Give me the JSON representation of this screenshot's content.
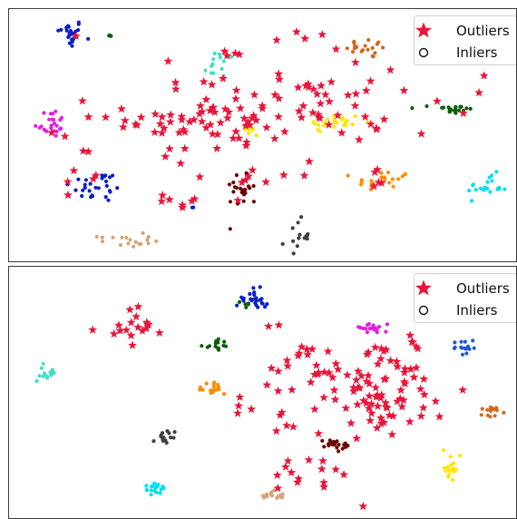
{
  "chart_data": [
    {
      "type": "scatter",
      "title": "",
      "xlabel": "",
      "ylabel": "",
      "xlim": [
        0,
        100
      ],
      "ylim": [
        0,
        100
      ],
      "grid": false,
      "legend": {
        "placement": "top-right",
        "entries": [
          {
            "label": "Outliers",
            "marker": "star",
            "color": "#e8163a"
          },
          {
            "label": "Inliers",
            "marker": "circle-open",
            "color": "#111111"
          }
        ]
      },
      "clusters": [
        {
          "color": "#0a1fc9",
          "cx": 11.5,
          "cy": 91.5,
          "sx": 1.3,
          "sy": 3.0,
          "n": 24
        },
        {
          "color": "#0b5e0b",
          "cx": 19.5,
          "cy": 91.0,
          "sx": 0.6,
          "sy": 1.0,
          "n": 3
        },
        {
          "color": "#40e0c0",
          "cx": 41.5,
          "cy": 79.0,
          "sx": 2.0,
          "sy": 3.0,
          "n": 15
        },
        {
          "color": "#d2691e",
          "cx": 71.5,
          "cy": 85.5,
          "sx": 2.4,
          "sy": 2.0,
          "n": 20
        },
        {
          "color": "#e020e0",
          "cx": 7.5,
          "cy": 55.0,
          "sx": 1.6,
          "sy": 3.0,
          "n": 24
        },
        {
          "color": "#0b5e0b",
          "cx": 88.0,
          "cy": 60.5,
          "sx": 2.0,
          "sy": 1.2,
          "n": 22
        },
        {
          "color": "#ffe600",
          "cx": 64.5,
          "cy": 55.0,
          "sx": 2.8,
          "sy": 2.0,
          "n": 24
        },
        {
          "color": "#ffe600",
          "cx": 48.0,
          "cy": 52.0,
          "sx": 1.5,
          "sy": 1.5,
          "n": 6
        },
        {
          "color": "#0a1fc9",
          "cx": 17.0,
          "cy": 29.0,
          "sx": 2.8,
          "sy": 3.2,
          "n": 28
        },
        {
          "color": "#6b0000",
          "cx": 46.0,
          "cy": 28.5,
          "sx": 1.6,
          "sy": 4.0,
          "n": 22
        },
        {
          "color": "#ff8c00",
          "cx": 74.0,
          "cy": 31.0,
          "sx": 2.8,
          "sy": 2.5,
          "n": 22
        },
        {
          "color": "#00e0f0",
          "cx": 95.0,
          "cy": 29.0,
          "sx": 2.0,
          "sy": 2.5,
          "n": 20
        },
        {
          "color": "#404040",
          "cx": 57.0,
          "cy": 8.5,
          "sx": 1.2,
          "sy": 3.5,
          "n": 14
        },
        {
          "color": "#d2a679",
          "cx": 22.5,
          "cy": 7.0,
          "sx": 2.6,
          "sy": 1.3,
          "n": 18
        },
        {
          "color": "#0a1fc9",
          "cx": 36.0,
          "cy": 20.5,
          "sx": 0.6,
          "sy": 0.6,
          "n": 2
        }
      ],
      "outliers": {
        "color": "#e8163a",
        "regions": [
          {
            "cx": 40.0,
            "cy": 57.0,
            "sx": 8.5,
            "sy": 8.0,
            "n": 70
          },
          {
            "cx": 63.0,
            "cy": 62.0,
            "sx": 6.5,
            "sy": 7.5,
            "n": 38
          },
          {
            "cx": 50.0,
            "cy": 84.0,
            "sx": 10.0,
            "sy": 5.0,
            "n": 12
          },
          {
            "cx": 13.0,
            "cy": 55.0,
            "sx": 3.0,
            "sy": 14.0,
            "n": 8
          },
          {
            "cx": 72.0,
            "cy": 32.0,
            "sx": 2.0,
            "sy": 3.0,
            "n": 5
          },
          {
            "cx": 34.0,
            "cy": 22.0,
            "sx": 3.5,
            "sy": 1.5,
            "n": 6
          },
          {
            "cx": 16.0,
            "cy": 30.0,
            "sx": 5.0,
            "sy": 4.0,
            "n": 5
          },
          {
            "cx": 85.0,
            "cy": 60.0,
            "sx": 8.0,
            "sy": 8.0,
            "n": 5
          },
          {
            "cx": 50.0,
            "cy": 35.0,
            "sx": 6.0,
            "sy": 5.0,
            "n": 10
          }
        ]
      }
    },
    {
      "type": "scatter",
      "title": "",
      "xlabel": "",
      "ylabel": "",
      "xlim": [
        0,
        100
      ],
      "ylim": [
        0,
        100
      ],
      "grid": false,
      "legend": {
        "placement": "top-right",
        "entries": [
          {
            "label": "Outliers",
            "marker": "star",
            "color": "#e8163a"
          },
          {
            "label": "Inliers",
            "marker": "circle-open",
            "color": "#111111"
          }
        ]
      },
      "clusters": [
        {
          "color": "#0a1fc9",
          "cx": 48.5,
          "cy": 88.5,
          "sx": 1.8,
          "sy": 2.4,
          "n": 26
        },
        {
          "color": "#0b5e0b",
          "cx": 47.0,
          "cy": 86.0,
          "sx": 1.2,
          "sy": 0.8,
          "n": 5
        },
        {
          "color": "#e020e0",
          "cx": 71.0,
          "cy": 76.0,
          "sx": 1.8,
          "sy": 1.0,
          "n": 18
        },
        {
          "color": "#0b5e0b",
          "cx": 40.5,
          "cy": 69.5,
          "sx": 1.2,
          "sy": 1.0,
          "n": 14
        },
        {
          "color": "#1c5bd0",
          "cx": 90.5,
          "cy": 68.0,
          "sx": 1.4,
          "sy": 1.8,
          "n": 16
        },
        {
          "color": "#40e0c0",
          "cx": 6.5,
          "cy": 57.5,
          "sx": 1.5,
          "sy": 1.4,
          "n": 16
        },
        {
          "color": "#ff8c00",
          "cx": 40.5,
          "cy": 51.5,
          "sx": 1.3,
          "sy": 1.3,
          "n": 16
        },
        {
          "color": "#d2691e",
          "cx": 95.5,
          "cy": 42.5,
          "sx": 1.5,
          "sy": 1.2,
          "n": 14
        },
        {
          "color": "#6b0000",
          "cx": 64.5,
          "cy": 29.0,
          "sx": 1.7,
          "sy": 1.3,
          "n": 20
        },
        {
          "color": "#404040",
          "cx": 30.5,
          "cy": 31.0,
          "sx": 1.2,
          "sy": 1.6,
          "n": 14
        },
        {
          "color": "#ffe600",
          "cx": 87.5,
          "cy": 19.5,
          "sx": 1.0,
          "sy": 2.2,
          "n": 16
        },
        {
          "color": "#00e0f0",
          "cx": 28.5,
          "cy": 10.5,
          "sx": 1.4,
          "sy": 1.2,
          "n": 18
        },
        {
          "color": "#d2a679",
          "cx": 52.5,
          "cy": 7.5,
          "sx": 1.6,
          "sy": 1.0,
          "n": 16
        }
      ],
      "outliers": {
        "color": "#e8163a",
        "regions": [
          {
            "cx": 24.0,
            "cy": 78.0,
            "sx": 3.5,
            "sy": 3.5,
            "n": 18
          },
          {
            "cx": 72.0,
            "cy": 50.0,
            "sx": 7.0,
            "sy": 9.0,
            "n": 85
          },
          {
            "cx": 57.0,
            "cy": 63.0,
            "sx": 4.5,
            "sy": 8.0,
            "n": 20
          },
          {
            "cx": 58.0,
            "cy": 19.0,
            "sx": 5.0,
            "sy": 4.0,
            "n": 12
          },
          {
            "cx": 50.0,
            "cy": 40.0,
            "sx": 6.0,
            "sy": 8.0,
            "n": 8
          },
          {
            "cx": 82.0,
            "cy": 72.0,
            "sx": 4.0,
            "sy": 4.0,
            "n": 4
          },
          {
            "cx": 62.0,
            "cy": 10.0,
            "sx": 3.0,
            "sy": 2.0,
            "n": 3
          }
        ]
      }
    }
  ]
}
